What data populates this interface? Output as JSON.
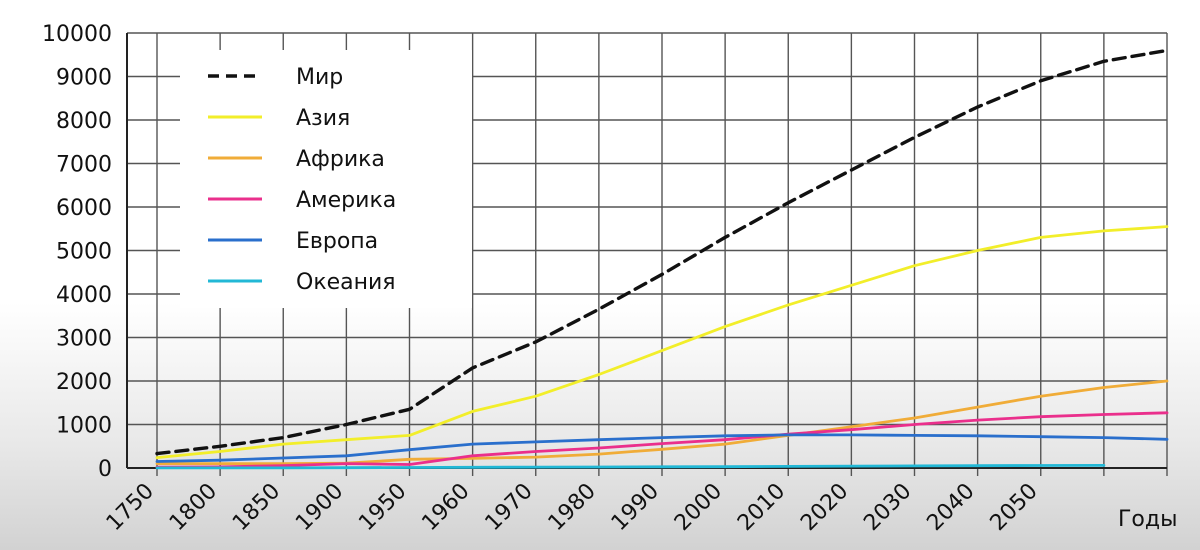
{
  "chart_data": {
    "type": "line",
    "title": "",
    "xlabel": "Годы",
    "ylabel": "",
    "x_ticks": [
      "1750",
      "1800",
      "1850",
      "1900",
      "1950",
      "1960",
      "1970",
      "1980",
      "1990",
      "2000",
      "2010",
      "2020",
      "2030",
      "2040",
      "2050"
    ],
    "y_ticks": [
      0,
      1000,
      2000,
      3000,
      4000,
      5000,
      6000,
      7000,
      8000,
      9000,
      10000
    ],
    "ylim": [
      0,
      10000
    ],
    "grid": true,
    "legend_position": "top-left",
    "series": [
      {
        "name": "Мир",
        "color": "#111111",
        "dash": true,
        "points": [
          [
            "1750",
            330
          ],
          [
            "1800",
            500
          ],
          [
            "1850",
            700
          ],
          [
            "1900",
            1000
          ],
          [
            "1950",
            1350
          ],
          [
            "1960",
            2300
          ],
          [
            "1970",
            2900
          ],
          [
            "1980",
            3650
          ],
          [
            "1990",
            4450
          ],
          [
            "2000",
            5300
          ],
          [
            "2010",
            6100
          ],
          [
            "2020",
            6850
          ],
          [
            "2030",
            7600
          ],
          [
            "2040",
            8300
          ],
          [
            "2050",
            8900
          ],
          [
            "2060",
            9350
          ],
          [
            "2070",
            9600
          ]
        ]
      },
      {
        "name": "Азия",
        "color": "#f2ee2a",
        "points": [
          [
            "1750",
            240
          ],
          [
            "1800",
            380
          ],
          [
            "1850",
            550
          ],
          [
            "1900",
            650
          ],
          [
            "1950",
            750
          ],
          [
            "1960",
            1300
          ],
          [
            "1970",
            1650
          ],
          [
            "1980",
            2150
          ],
          [
            "1990",
            2700
          ],
          [
            "2000",
            3250
          ],
          [
            "2010",
            3750
          ],
          [
            "2020",
            4200
          ],
          [
            "2030",
            4650
          ],
          [
            "2040",
            5000
          ],
          [
            "2050",
            5300
          ],
          [
            "2060",
            5450
          ],
          [
            "2070",
            5550
          ]
        ]
      },
      {
        "name": "Африка",
        "color": "#f0ac38",
        "points": [
          [
            "1750",
            100
          ],
          [
            "1800",
            100
          ],
          [
            "1850",
            100
          ],
          [
            "1900",
            110
          ],
          [
            "1950",
            200
          ],
          [
            "1960",
            220
          ],
          [
            "1970",
            250
          ],
          [
            "1980",
            320
          ],
          [
            "1990",
            430
          ],
          [
            "2000",
            550
          ],
          [
            "2010",
            750
          ],
          [
            "2020",
            950
          ],
          [
            "2030",
            1150
          ],
          [
            "2040",
            1400
          ],
          [
            "2050",
            1650
          ],
          [
            "2060",
            1850
          ],
          [
            "2070",
            2000
          ]
        ]
      },
      {
        "name": "Америка",
        "color": "#ea2f8c",
        "points": [
          [
            "1750",
            20
          ],
          [
            "1800",
            25
          ],
          [
            "1850",
            55
          ],
          [
            "1900",
            100
          ],
          [
            "1950",
            80
          ],
          [
            "1960",
            280
          ],
          [
            "1970",
            380
          ],
          [
            "1980",
            460
          ],
          [
            "1990",
            560
          ],
          [
            "2000",
            650
          ],
          [
            "2010",
            780
          ],
          [
            "2020",
            880
          ],
          [
            "2030",
            1000
          ],
          [
            "2040",
            1100
          ],
          [
            "2050",
            1180
          ],
          [
            "2060",
            1230
          ],
          [
            "2070",
            1270
          ]
        ]
      },
      {
        "name": "Европа",
        "color": "#2a6fcc",
        "points": [
          [
            "1750",
            150
          ],
          [
            "1800",
            180
          ],
          [
            "1850",
            230
          ],
          [
            "1900",
            280
          ],
          [
            "1950",
            420
          ],
          [
            "1960",
            550
          ],
          [
            "1970",
            600
          ],
          [
            "1980",
            650
          ],
          [
            "1990",
            700
          ],
          [
            "2000",
            740
          ],
          [
            "2010",
            760
          ],
          [
            "2020",
            760
          ],
          [
            "2030",
            750
          ],
          [
            "2040",
            740
          ],
          [
            "2050",
            720
          ],
          [
            "2060",
            700
          ],
          [
            "2070",
            660
          ]
        ]
      },
      {
        "name": "Океания",
        "color": "#22b8d6",
        "points": [
          [
            "1750",
            2
          ],
          [
            "1800",
            2
          ],
          [
            "1850",
            2
          ],
          [
            "1900",
            6
          ],
          [
            "1950",
            12
          ],
          [
            "1960",
            16
          ],
          [
            "1970",
            20
          ],
          [
            "1980",
            23
          ],
          [
            "1990",
            27
          ],
          [
            "2000",
            31
          ],
          [
            "2010",
            37
          ],
          [
            "2020",
            43
          ],
          [
            "2030",
            48
          ],
          [
            "2040",
            53
          ],
          [
            "2050",
            57
          ],
          [
            "2060",
            60
          ]
        ]
      }
    ]
  }
}
